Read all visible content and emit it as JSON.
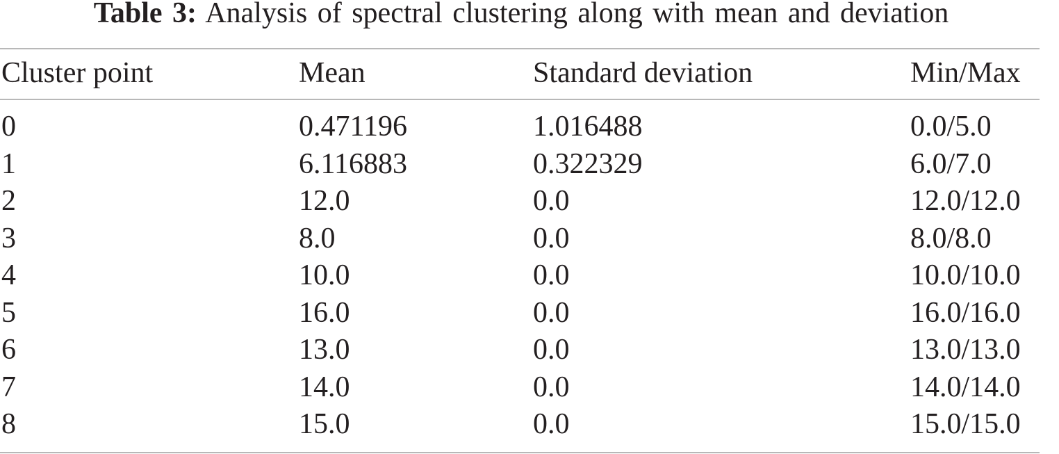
{
  "caption": {
    "label": "Table 3:",
    "text": "Analysis of spectral clustering along with mean and deviation"
  },
  "table": {
    "header": [
      "Cluster point",
      "Mean",
      "Standard deviation",
      "Min/Max"
    ],
    "rows": [
      [
        "0",
        "0.471196",
        "1.016488",
        "0.0/5.0"
      ],
      [
        "1",
        "6.116883",
        "0.322329",
        "6.0/7.0"
      ],
      [
        "2",
        "12.0",
        "0.0",
        "12.0/12.0"
      ],
      [
        "3",
        "8.0",
        "0.0",
        "8.0/8.0"
      ],
      [
        "4",
        "10.0",
        "0.0",
        "10.0/10.0"
      ],
      [
        "5",
        "16.0",
        "0.0",
        "16.0/16.0"
      ],
      [
        "6",
        "13.0",
        "0.0",
        "13.0/13.0"
      ],
      [
        "7",
        "14.0",
        "0.0",
        "14.0/14.0"
      ],
      [
        "8",
        "15.0",
        "0.0",
        "15.0/15.0"
      ]
    ]
  }
}
